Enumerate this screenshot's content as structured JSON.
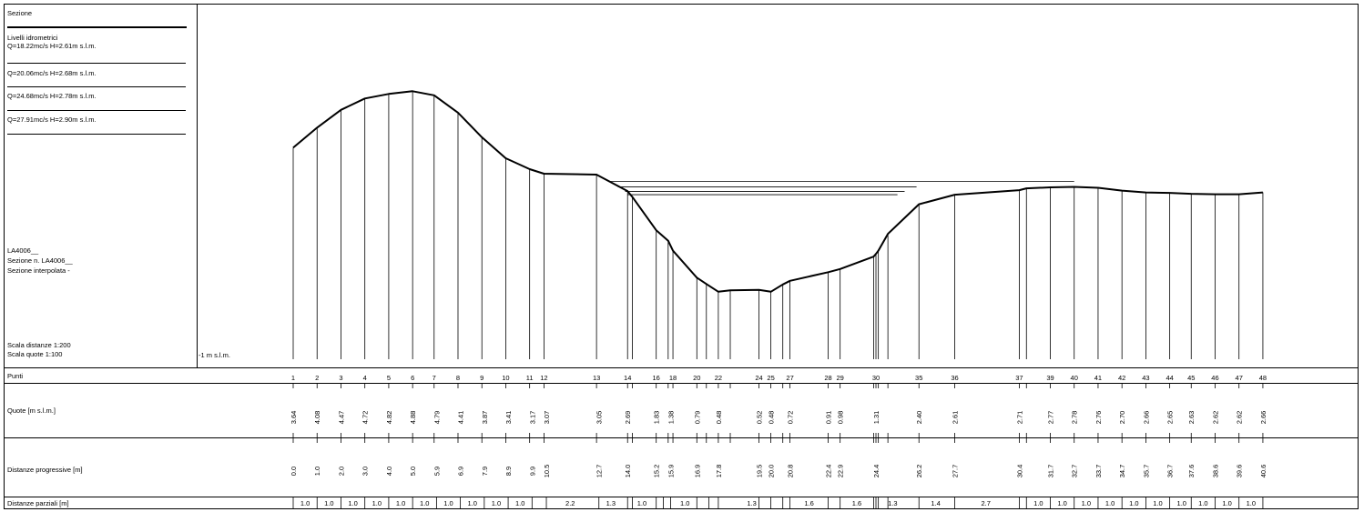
{
  "legend": {
    "section_title": "Sezione",
    "levels_title": "Livelli idrometrici",
    "levels": [
      "Q=18.22mc/s  H=2.61m s.l.m.",
      "Q=20.06mc/s  H=2.68m s.l.m.",
      "Q=24.68mc/s  H=2.78m s.l.m.",
      "Q=27.91mc/s  H=2.90m s.l.m."
    ],
    "section_code": "LA4006__",
    "section_number": "Sezione n. LA4006__",
    "interpolated": "Sezione interpolata -",
    "scale_distances": "Scala distanze 1:200",
    "scale_heights": "Scala quote    1:100",
    "datum": "-1 m s.l.m."
  },
  "table": {
    "row_points": "Punti",
    "row_heights": "Quote [m s.l.m.]",
    "row_progressive": "Distanze progressive [m]",
    "row_partial": "Distanze parziali [m]"
  },
  "chart_data": {
    "type": "line",
    "xlabel": "Distanze progressive [m]",
    "ylabel": "Quote [m s.l.m.]",
    "datum": -1,
    "points": [
      {
        "id": "1",
        "x": 0.0,
        "z": 3.64
      },
      {
        "id": "2",
        "x": 1.0,
        "z": 4.08
      },
      {
        "id": "3",
        "x": 2.0,
        "z": 4.47
      },
      {
        "id": "4",
        "x": 3.0,
        "z": 4.72
      },
      {
        "id": "5",
        "x": 4.0,
        "z": 4.82
      },
      {
        "id": "6",
        "x": 5.0,
        "z": 4.88
      },
      {
        "id": "7",
        "x": 5.9,
        "z": 4.79
      },
      {
        "id": "8",
        "x": 6.9,
        "z": 4.41
      },
      {
        "id": "9",
        "x": 7.9,
        "z": 3.87
      },
      {
        "id": "10",
        "x": 8.9,
        "z": 3.41
      },
      {
        "id": "11",
        "x": 9.9,
        "z": 3.17
      },
      {
        "id": "12",
        "x": 10.5,
        "z": 3.07
      },
      {
        "id": "13",
        "x": 12.7,
        "z": 3.05
      },
      {
        "id": "14",
        "x": 14.0,
        "z": 2.69
      },
      {
        "id": "",
        "x": 14.2,
        "z": 2.56
      },
      {
        "id": "16",
        "x": 15.2,
        "z": 1.83
      },
      {
        "id": "",
        "x": 15.7,
        "z": 1.6
      },
      {
        "id": "18",
        "x": 15.9,
        "z": 1.38
      },
      {
        "id": "20",
        "x": 16.9,
        "z": 0.79
      },
      {
        "id": "",
        "x": 17.3,
        "z": 0.65
      },
      {
        "id": "22",
        "x": 17.8,
        "z": 0.48
      },
      {
        "id": "",
        "x": 18.3,
        "z": 0.51
      },
      {
        "id": "24",
        "x": 19.5,
        "z": 0.52
      },
      {
        "id": "25",
        "x": 20.0,
        "z": 0.48
      },
      {
        "id": "",
        "x": 20.5,
        "z": 0.64
      },
      {
        "id": "27",
        "x": 20.8,
        "z": 0.72
      },
      {
        "id": "28",
        "x": 22.4,
        "z": 0.91
      },
      {
        "id": "29",
        "x": 22.9,
        "z": 0.98
      },
      {
        "id": "",
        "x": 24.3,
        "z": 1.25
      },
      {
        "id": "30",
        "x": 24.4,
        "z": 1.31
      },
      {
        "id": "",
        "x": 24.5,
        "z": 1.38
      },
      {
        "id": "",
        "x": 24.9,
        "z": 1.75
      },
      {
        "id": "35",
        "x": 26.2,
        "z": 2.4
      },
      {
        "id": "36",
        "x": 27.7,
        "z": 2.61
      },
      {
        "id": "37",
        "x": 30.4,
        "z": 2.71
      },
      {
        "id": "",
        "x": 30.7,
        "z": 2.75
      },
      {
        "id": "39",
        "x": 31.7,
        "z": 2.77
      },
      {
        "id": "40",
        "x": 32.7,
        "z": 2.78
      },
      {
        "id": "41",
        "x": 33.7,
        "z": 2.76
      },
      {
        "id": "42",
        "x": 34.7,
        "z": 2.7
      },
      {
        "id": "43",
        "x": 35.7,
        "z": 2.66
      },
      {
        "id": "44",
        "x": 36.7,
        "z": 2.65
      },
      {
        "id": "45",
        "x": 37.6,
        "z": 2.63
      },
      {
        "id": "46",
        "x": 38.6,
        "z": 2.62
      },
      {
        "id": "47",
        "x": 39.6,
        "z": 2.62
      },
      {
        "id": "48",
        "x": 40.6,
        "z": 2.66
      }
    ],
    "quote_labels": [
      {
        "x": 0.0,
        "text": "3.64"
      },
      {
        "x": 1.0,
        "text": "4.08"
      },
      {
        "x": 2.0,
        "text": "4.47"
      },
      {
        "x": 3.0,
        "text": "4.72"
      },
      {
        "x": 4.0,
        "text": "4.82"
      },
      {
        "x": 5.0,
        "text": "4.88"
      },
      {
        "x": 6.0,
        "text": "4.79"
      },
      {
        "x": 7.0,
        "text": "4.41"
      },
      {
        "x": 8.0,
        "text": "3.87"
      },
      {
        "x": 9.0,
        "text": "3.41"
      },
      {
        "x": 10.0,
        "text": "3.17"
      },
      {
        "x": 10.6,
        "text": "3.07"
      },
      {
        "x": 12.8,
        "text": "3.05"
      },
      {
        "x": 14.0,
        "text": "2.69"
      },
      {
        "x": 15.2,
        "text": "1.83"
      },
      {
        "x": 15.8,
        "text": "1.38"
      },
      {
        "x": 16.9,
        "text": "0.79"
      },
      {
        "x": 17.8,
        "text": "0.48"
      },
      {
        "x": 19.5,
        "text": "0.52"
      },
      {
        "x": 20.0,
        "text": "0.48"
      },
      {
        "x": 20.8,
        "text": "0.72"
      },
      {
        "x": 22.4,
        "text": "0.91"
      },
      {
        "x": 22.9,
        "text": "0.98"
      },
      {
        "x": 24.4,
        "text": "1.31"
      },
      {
        "x": 26.2,
        "text": "2.40"
      },
      {
        "x": 27.7,
        "text": "2.61"
      },
      {
        "x": 30.4,
        "text": "2.71"
      },
      {
        "x": 31.7,
        "text": "2.77"
      },
      {
        "x": 32.7,
        "text": "2.78"
      },
      {
        "x": 33.7,
        "text": "2.76"
      },
      {
        "x": 34.7,
        "text": "2.70"
      },
      {
        "x": 35.7,
        "text": "2.66"
      },
      {
        "x": 36.7,
        "text": "2.65"
      },
      {
        "x": 37.6,
        "text": "2.63"
      },
      {
        "x": 38.6,
        "text": "2.62"
      },
      {
        "x": 39.6,
        "text": "2.62"
      },
      {
        "x": 40.6,
        "text": "2.66"
      }
    ],
    "progressive_labels": [
      {
        "x": 0.0,
        "text": "0.0"
      },
      {
        "x": 1.0,
        "text": "1.0"
      },
      {
        "x": 2.0,
        "text": "2.0"
      },
      {
        "x": 3.0,
        "text": "3.0"
      },
      {
        "x": 4.0,
        "text": "4.0"
      },
      {
        "x": 5.0,
        "text": "5.0"
      },
      {
        "x": 6.0,
        "text": "5.9"
      },
      {
        "x": 7.0,
        "text": "6.9"
      },
      {
        "x": 8.0,
        "text": "7.9"
      },
      {
        "x": 9.0,
        "text": "8.9"
      },
      {
        "x": 10.0,
        "text": "9.9"
      },
      {
        "x": 10.6,
        "text": "10.5"
      },
      {
        "x": 12.8,
        "text": "12.7"
      },
      {
        "x": 14.0,
        "text": "14.0"
      },
      {
        "x": 15.2,
        "text": "15.2"
      },
      {
        "x": 15.8,
        "text": "15.9"
      },
      {
        "x": 16.9,
        "text": "16.9"
      },
      {
        "x": 17.8,
        "text": "17.8"
      },
      {
        "x": 19.5,
        "text": "19.5"
      },
      {
        "x": 20.0,
        "text": "20.0"
      },
      {
        "x": 20.8,
        "text": "20.8"
      },
      {
        "x": 22.4,
        "text": "22.4"
      },
      {
        "x": 22.9,
        "text": "22.9"
      },
      {
        "x": 24.4,
        "text": "24.4"
      },
      {
        "x": 26.2,
        "text": "26.2"
      },
      {
        "x": 27.7,
        "text": "27.7"
      },
      {
        "x": 30.4,
        "text": "30.4"
      },
      {
        "x": 31.7,
        "text": "31.7"
      },
      {
        "x": 32.7,
        "text": "32.7"
      },
      {
        "x": 33.7,
        "text": "33.7"
      },
      {
        "x": 34.7,
        "text": "34.7"
      },
      {
        "x": 35.7,
        "text": "35.7"
      },
      {
        "x": 36.7,
        "text": "36.7"
      },
      {
        "x": 37.6,
        "text": "37.6"
      },
      {
        "x": 38.6,
        "text": "38.6"
      },
      {
        "x": 39.6,
        "text": "39.6"
      },
      {
        "x": 40.6,
        "text": "40.6"
      }
    ],
    "partial_labels": [
      {
        "x": 0.5,
        "text": "1.0"
      },
      {
        "x": 1.5,
        "text": "1.0"
      },
      {
        "x": 2.5,
        "text": "1.0"
      },
      {
        "x": 3.5,
        "text": "1.0"
      },
      {
        "x": 4.5,
        "text": "1.0"
      },
      {
        "x": 5.5,
        "text": "1.0"
      },
      {
        "x": 6.5,
        "text": "1.0"
      },
      {
        "x": 7.5,
        "text": "1.0"
      },
      {
        "x": 8.5,
        "text": "1.0"
      },
      {
        "x": 9.5,
        "text": "1.0"
      },
      {
        "x": 11.6,
        "text": "2.2"
      },
      {
        "x": 13.3,
        "text": "1.3"
      },
      {
        "x": 14.6,
        "text": "1.0"
      },
      {
        "x": 16.4,
        "text": "1.0"
      },
      {
        "x": 19.2,
        "text": "1.3"
      },
      {
        "x": 21.6,
        "text": "1.6"
      },
      {
        "x": 23.6,
        "text": "1.6"
      },
      {
        "x": 25.1,
        "text": "1.3"
      },
      {
        "x": 26.9,
        "text": "1.4"
      },
      {
        "x": 29.0,
        "text": "2.7"
      },
      {
        "x": 31.2,
        "text": "1.0"
      },
      {
        "x": 32.2,
        "text": "1.0"
      },
      {
        "x": 33.2,
        "text": "1.0"
      },
      {
        "x": 34.2,
        "text": "1.0"
      },
      {
        "x": 35.2,
        "text": "1.0"
      },
      {
        "x": 36.2,
        "text": "1.0"
      },
      {
        "x": 37.2,
        "text": "1.0"
      },
      {
        "x": 38.1,
        "text": "1.0"
      },
      {
        "x": 39.1,
        "text": "1.0"
      },
      {
        "x": 40.1,
        "text": "1.0"
      }
    ],
    "partial_ticks": [
      0.0,
      1.0,
      2.0,
      3.0,
      4.0,
      5.0,
      6.0,
      7.0,
      8.0,
      9.0,
      10.0,
      10.6,
      12.8,
      14.0,
      14.2,
      15.2,
      15.5,
      15.8,
      16.9,
      17.4,
      17.8,
      19.5,
      20.0,
      20.5,
      20.8,
      22.4,
      22.9,
      24.3,
      24.4,
      24.5,
      24.9,
      26.2,
      27.7,
      30.4,
      30.7,
      31.7,
      32.7,
      33.7,
      34.7,
      35.7,
      36.7,
      37.6,
      38.6,
      39.6,
      40.6
    ],
    "water_levels": [
      {
        "q": 18.22,
        "h": 2.61,
        "x0": 14.0,
        "x1": 25.3
      },
      {
        "q": 20.06,
        "h": 2.68,
        "x0": 13.9,
        "x1": 25.6
      },
      {
        "q": 24.68,
        "h": 2.78,
        "x0": 13.6,
        "x1": 26.1
      },
      {
        "q": 27.91,
        "h": 2.9,
        "x0": 13.2,
        "x1": 32.7
      }
    ]
  }
}
